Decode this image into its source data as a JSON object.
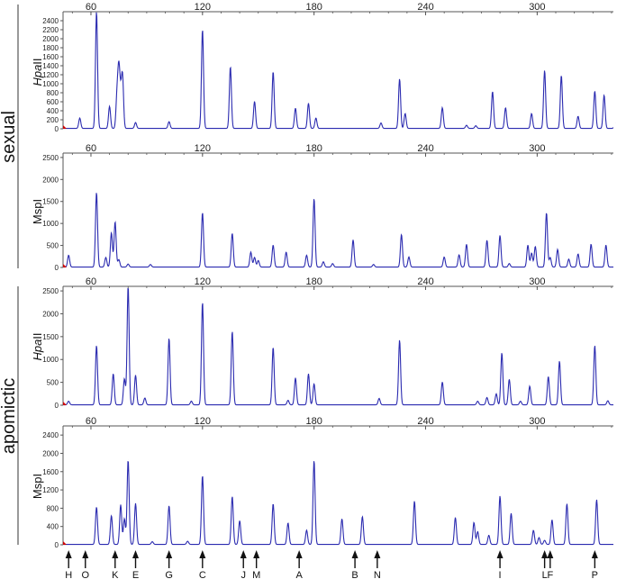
{
  "groups": [
    {
      "label": "sexual"
    },
    {
      "label": "apomictic"
    }
  ],
  "colors": {
    "trace": "#2b2bb0",
    "axis": "#555555",
    "text": "#222222",
    "baseline_marker": "#cc0000"
  },
  "chart_data": [
    {
      "type": "line",
      "group": "sexual",
      "enzyme": "HpaII",
      "enzyme_parts": [
        "Hpa",
        "II"
      ],
      "xticks": [
        60,
        120,
        180,
        240,
        300
      ],
      "xlim": [
        45,
        341
      ],
      "ylim": [
        0,
        2600
      ],
      "yticks": [
        0,
        200,
        400,
        600,
        800,
        1000,
        1200,
        1400,
        1600,
        1800,
        2000,
        2200,
        2400
      ],
      "peaks": [
        [
          54,
          230
        ],
        [
          63,
          2600
        ],
        [
          70,
          490
        ],
        [
          74,
          700
        ],
        [
          75,
          1250
        ],
        [
          76,
          620
        ],
        [
          77,
          1120
        ],
        [
          84,
          130
        ],
        [
          102,
          150
        ],
        [
          120,
          2200
        ],
        [
          135,
          1370
        ],
        [
          148,
          600
        ],
        [
          158,
          1260
        ],
        [
          170,
          450
        ],
        [
          177,
          560
        ],
        [
          181,
          230
        ],
        [
          216,
          120
        ],
        [
          226,
          1100
        ],
        [
          229,
          330
        ],
        [
          249,
          460
        ],
        [
          262,
          70
        ],
        [
          267,
          60
        ],
        [
          276,
          820
        ],
        [
          283,
          460
        ],
        [
          297,
          330
        ],
        [
          304,
          1290
        ],
        [
          313,
          1180
        ],
        [
          322,
          270
        ],
        [
          331,
          830
        ],
        [
          336,
          740
        ],
        [
          342,
          120
        ]
      ]
    },
    {
      "type": "line",
      "group": "sexual",
      "enzyme": "MspI",
      "enzyme_parts": [
        "MspI",
        ""
      ],
      "xticks": [
        60,
        120,
        180,
        240,
        300
      ],
      "xlim": [
        45,
        341
      ],
      "ylim": [
        0,
        2600
      ],
      "yticks": [
        0,
        500,
        1000,
        1500,
        2000,
        2500
      ],
      "peaks": [
        [
          48,
          270
        ],
        [
          63,
          1700
        ],
        [
          68,
          220
        ],
        [
          71,
          780
        ],
        [
          73,
          1030
        ],
        [
          75,
          170
        ],
        [
          80,
          70
        ],
        [
          92,
          60
        ],
        [
          120,
          1240
        ],
        [
          136,
          770
        ],
        [
          146,
          340
        ],
        [
          148,
          220
        ],
        [
          150,
          150
        ],
        [
          158,
          500
        ],
        [
          165,
          340
        ],
        [
          176,
          270
        ],
        [
          180,
          1560
        ],
        [
          185,
          120
        ],
        [
          190,
          80
        ],
        [
          201,
          620
        ],
        [
          212,
          60
        ],
        [
          227,
          740
        ],
        [
          231,
          230
        ],
        [
          250,
          230
        ],
        [
          258,
          280
        ],
        [
          262,
          520
        ],
        [
          273,
          610
        ],
        [
          280,
          720
        ],
        [
          285,
          80
        ],
        [
          295,
          500
        ],
        [
          297,
          320
        ],
        [
          299,
          470
        ],
        [
          305,
          1240
        ],
        [
          307,
          220
        ],
        [
          311,
          400
        ],
        [
          317,
          180
        ],
        [
          322,
          300
        ],
        [
          329,
          520
        ],
        [
          337,
          500
        ],
        [
          344,
          110
        ]
      ]
    },
    {
      "type": "line",
      "group": "apomictic",
      "enzyme": "HpaII",
      "enzyme_parts": [
        "Hpa",
        "II"
      ],
      "xticks": [
        60,
        120,
        180,
        240,
        300
      ],
      "xlim": [
        45,
        341
      ],
      "ylim": [
        0,
        2600
      ],
      "yticks": [
        0,
        500,
        1000,
        1500,
        2000,
        2500
      ],
      "peaks": [
        [
          48,
          80
        ],
        [
          63,
          1300
        ],
        [
          72,
          680
        ],
        [
          78,
          570
        ],
        [
          80,
          2600
        ],
        [
          84,
          650
        ],
        [
          89,
          150
        ],
        [
          102,
          1460
        ],
        [
          114,
          80
        ],
        [
          120,
          2250
        ],
        [
          136,
          1610
        ],
        [
          158,
          1260
        ],
        [
          166,
          100
        ],
        [
          170,
          590
        ],
        [
          177,
          680
        ],
        [
          180,
          460
        ],
        [
          215,
          140
        ],
        [
          226,
          1420
        ],
        [
          249,
          500
        ],
        [
          268,
          80
        ],
        [
          273,
          160
        ],
        [
          278,
          240
        ],
        [
          281,
          1140
        ],
        [
          285,
          560
        ],
        [
          291,
          80
        ],
        [
          296,
          410
        ],
        [
          306,
          620
        ],
        [
          312,
          960
        ],
        [
          331,
          1300
        ],
        [
          338,
          90
        ],
        [
          345,
          370
        ]
      ]
    },
    {
      "type": "line",
      "group": "apomictic",
      "enzyme": "MspI",
      "enzyme_parts": [
        "MspI",
        ""
      ],
      "xticks": [
        60,
        120,
        180,
        240,
        300
      ],
      "xlim": [
        45,
        341
      ],
      "ylim": [
        0,
        2600
      ],
      "yticks": [
        0,
        400,
        800,
        1200,
        1600,
        2000,
        2400
      ],
      "peaks": [
        [
          63,
          820
        ],
        [
          71,
          630
        ],
        [
          76,
          870
        ],
        [
          78,
          560
        ],
        [
          80,
          1850
        ],
        [
          84,
          900
        ],
        [
          93,
          60
        ],
        [
          102,
          850
        ],
        [
          112,
          70
        ],
        [
          120,
          1510
        ],
        [
          136,
          1050
        ],
        [
          140,
          520
        ],
        [
          158,
          890
        ],
        [
          166,
          470
        ],
        [
          176,
          310
        ],
        [
          180,
          1840
        ],
        [
          195,
          560
        ],
        [
          206,
          610
        ],
        [
          234,
          950
        ],
        [
          256,
          590
        ],
        [
          266,
          480
        ],
        [
          268,
          280
        ],
        [
          274,
          200
        ],
        [
          280,
          1060
        ],
        [
          286,
          680
        ],
        [
          298,
          310
        ],
        [
          301,
          150
        ],
        [
          304,
          90
        ],
        [
          308,
          540
        ],
        [
          316,
          890
        ],
        [
          332,
          980
        ],
        [
          346,
          240
        ]
      ]
    }
  ],
  "markers": [
    "H",
    "O",
    "K",
    "E",
    "G",
    "C",
    "J",
    "M",
    "A",
    "B",
    "N",
    "I",
    "L",
    "F",
    "P"
  ],
  "marker_positions": [
    {
      "label": "H",
      "x": 48
    },
    {
      "label": "O",
      "x": 57
    },
    {
      "label": "K",
      "x": 73
    },
    {
      "label": "E",
      "x": 84
    },
    {
      "label": "G",
      "x": 102
    },
    {
      "label": "C",
      "x": 120
    },
    {
      "label": "J",
      "x": 142
    },
    {
      "label": "M",
      "x": 149
    },
    {
      "label": "A",
      "x": 172
    },
    {
      "label": "B",
      "x": 202
    },
    {
      "label": "N",
      "x": 214
    },
    {
      "label": "I",
      "x": 280
    },
    {
      "label": "L",
      "x": 304
    },
    {
      "label": "F",
      "x": 307
    },
    {
      "label": "P",
      "x": 331
    }
  ]
}
